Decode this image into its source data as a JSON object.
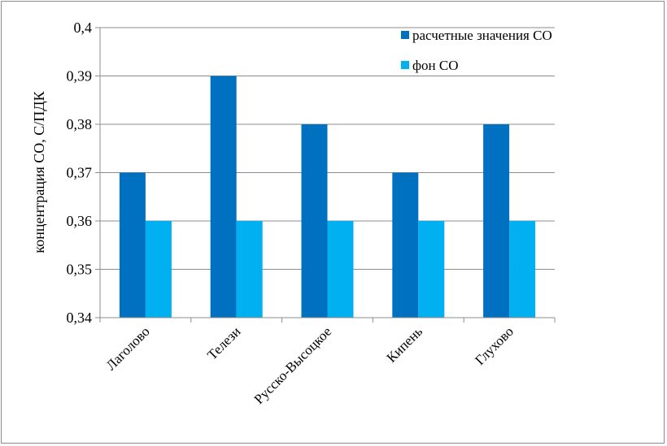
{
  "chart_data": {
    "type": "bar",
    "categories": [
      "Лаголово",
      "Телези",
      "Русско-Высоцкое",
      "Кипень",
      "Глухово"
    ],
    "series": [
      {
        "name": "расчетные значения СО",
        "values": [
          0.37,
          0.39,
          0.38,
          0.37,
          0.38
        ],
        "color": "#0070C0"
      },
      {
        "name": "фон СО",
        "values": [
          0.36,
          0.36,
          0.36,
          0.36,
          0.36
        ],
        "color": "#00B0F0"
      }
    ],
    "yticks": [
      "0,34",
      "0,35",
      "0,36",
      "0,37",
      "0,38",
      "0,39",
      "0,4"
    ],
    "ylim": [
      0.34,
      0.4
    ],
    "ylabel": "концентрация СО, С/ПДК",
    "xlabel": "",
    "grid": true,
    "legend_position": "top-right"
  }
}
